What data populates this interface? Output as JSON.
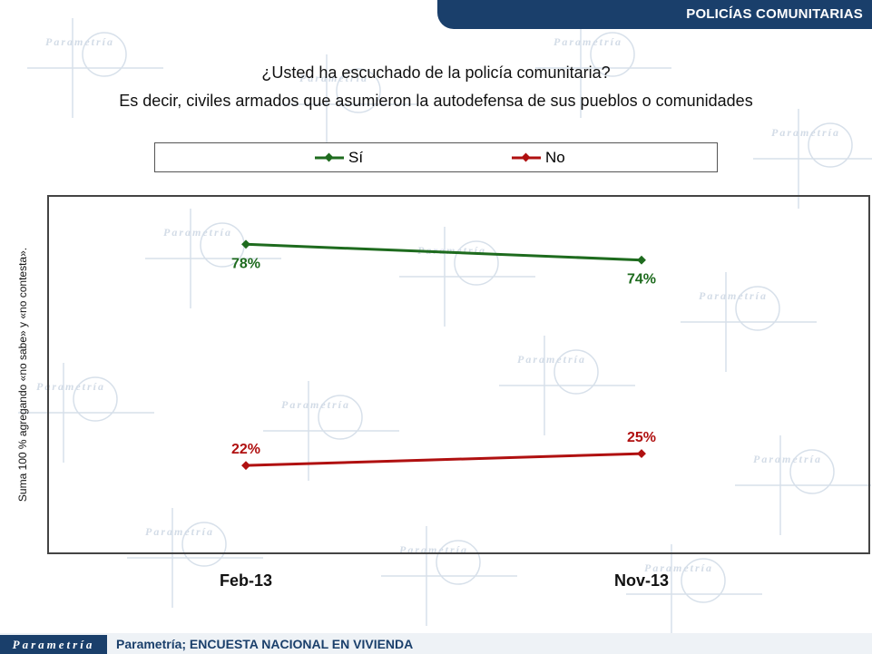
{
  "header": {
    "title": "POLICÍAS COMUNITARIAS"
  },
  "question": {
    "line1": "¿Usted ha escuchado de la policía comunitaria?",
    "line2": "Es decir, civiles armados que asumieron la autodefensa de sus pueblos o comunidades"
  },
  "side_note": "Suma 100 %  agregando «no sabe» y «no contesta».",
  "footer": {
    "logo": "Parametría",
    "source": "Parametría; ENCUESTA NACIONAL  EN VIVIENDA"
  },
  "watermark": {
    "text": "Parametría"
  },
  "colors": {
    "header_bg": "#1a3f6b",
    "si": "#1e6b1e",
    "no": "#b01010"
  },
  "chart_data": {
    "type": "line",
    "categories": [
      "Feb-13",
      "Nov-13"
    ],
    "series": [
      {
        "name": "Sí",
        "values": [
          78,
          74
        ],
        "labels": [
          "78%",
          "74%"
        ],
        "color": "#1e6b1e"
      },
      {
        "name": "No",
        "values": [
          22,
          25
        ],
        "labels": [
          "22%",
          "25%"
        ],
        "color": "#b01010"
      }
    ],
    "ylim": [
      0,
      90
    ],
    "grid": false,
    "legend_position": "top"
  }
}
